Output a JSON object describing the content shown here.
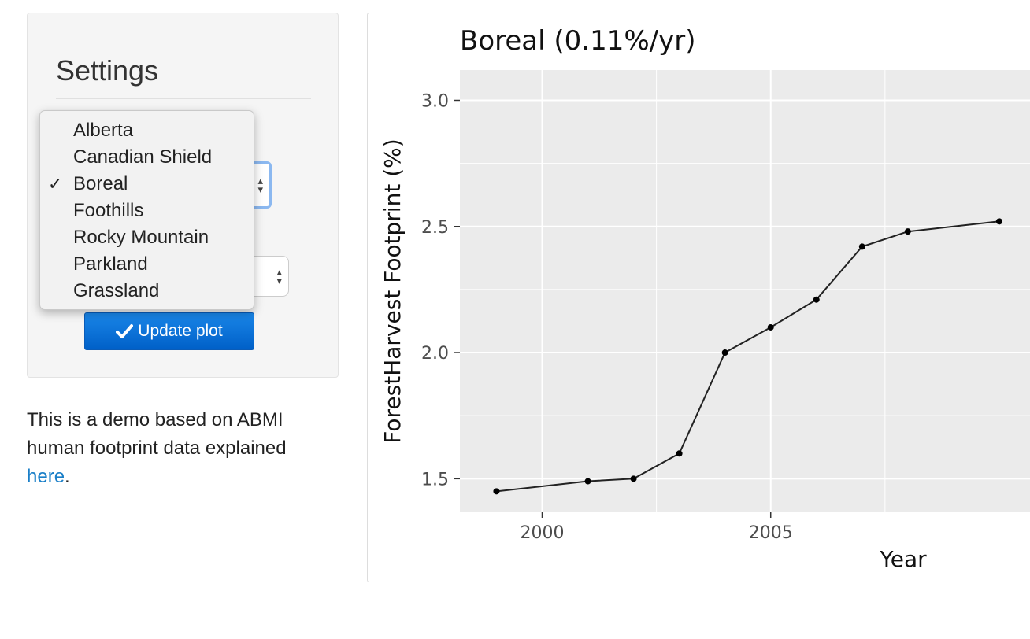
{
  "sidebar": {
    "title": "Settings",
    "region_select": {
      "options": [
        "Alberta",
        "Canadian Shield",
        "Boreal",
        "Foothills",
        "Rocky Mountain",
        "Parkland",
        "Grassland"
      ],
      "selected": "Boreal",
      "check_mark": "✓"
    },
    "update_button": {
      "label": "Update plot",
      "icon": "check-icon"
    },
    "description": {
      "text": "This is a demo based on ABMI human footprint data explained ",
      "link_text": "here",
      "suffix": "."
    }
  },
  "colors": {
    "panel_bg": "#ebebeb",
    "grid": "#ffffff",
    "line": "#222222",
    "button": "#0a6fdc",
    "link": "#1a7fc8"
  },
  "chart_data": {
    "type": "line",
    "title": "Boreal (0.11%/yr)",
    "xlabel": "Year",
    "ylabel": "ForestHarvest Footprint (%)",
    "x": [
      1999,
      2001,
      2002,
      2003,
      2004,
      2005,
      2006,
      2007,
      2008,
      2010
    ],
    "series": [
      {
        "values": [
          1.45,
          1.49,
          1.5,
          1.6,
          2.0,
          2.1,
          2.21,
          2.42,
          2.48,
          2.52
        ]
      }
    ],
    "x_ticks": [
      2000,
      2005
    ],
    "x_tick_labels": [
      "2000",
      "2005"
    ],
    "y_ticks": [
      1.5,
      2.0,
      2.5,
      3.0
    ],
    "y_tick_labels": [
      "1.5",
      "2.0",
      "2.5",
      "3.0"
    ],
    "xlim": [
      1998.2,
      2011
    ],
    "ylim": [
      1.37,
      3.12
    ],
    "grid": true,
    "legend": "none"
  }
}
